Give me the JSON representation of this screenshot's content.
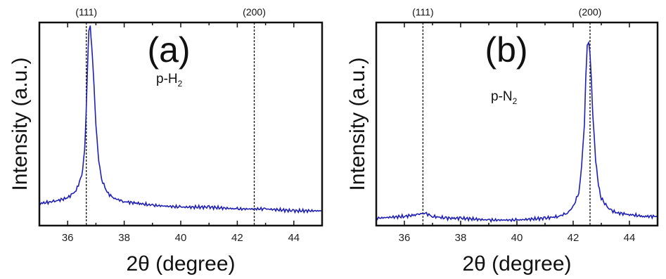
{
  "chart_data": [
    {
      "type": "line",
      "panel_label": "(a)",
      "sample": {
        "base": "p-H",
        "subscript": "2"
      },
      "xlabel": "2θ (degree)",
      "ylabel": "Intensity (a.u.)",
      "xlim": [
        35,
        45
      ],
      "ylim": [
        0,
        1.1
      ],
      "xticks": [
        36,
        38,
        40,
        42,
        44
      ],
      "y_ticks_labeled": false,
      "grid": false,
      "reference_lines": [
        {
          "label": "(111)",
          "x": 36.66
        },
        {
          "label": "(200)",
          "x": 42.6
        }
      ],
      "series": [
        {
          "color": "#1f1fb4",
          "x": [
            35.0,
            35.5,
            36.0,
            36.3,
            36.5,
            36.6,
            36.65,
            36.7,
            36.75,
            36.8,
            36.85,
            36.9,
            37.0,
            37.1,
            37.2,
            37.4,
            37.6,
            38.0,
            38.5,
            39.0,
            40.0,
            41.0,
            42.0,
            43.0,
            44.0,
            45.0
          ],
          "y": [
            0.12,
            0.13,
            0.15,
            0.19,
            0.27,
            0.4,
            0.6,
            0.85,
            1.05,
            1.08,
            0.98,
            0.85,
            0.55,
            0.35,
            0.25,
            0.18,
            0.15,
            0.13,
            0.12,
            0.11,
            0.1,
            0.1,
            0.09,
            0.09,
            0.08,
            0.08
          ]
        }
      ]
    },
    {
      "type": "line",
      "panel_label": "(b)",
      "sample": {
        "base": "p-N",
        "subscript": "2"
      },
      "xlabel": "2θ (degree)",
      "ylabel": "Intensity (a.u.)",
      "xlim": [
        35,
        45
      ],
      "ylim": [
        0,
        1.1
      ],
      "xticks": [
        36,
        38,
        40,
        42,
        44
      ],
      "y_ticks_labeled": false,
      "grid": false,
      "reference_lines": [
        {
          "label": "(111)",
          "x": 36.66
        },
        {
          "label": "(200)",
          "x": 42.6
        }
      ],
      "series": [
        {
          "color": "#1f1fb4",
          "x": [
            35.0,
            36.0,
            36.5,
            36.7,
            37.0,
            37.5,
            38.0,
            39.0,
            40.0,
            41.0,
            41.5,
            41.8,
            42.0,
            42.2,
            42.3,
            42.4,
            42.45,
            42.5,
            42.55,
            42.6,
            42.65,
            42.7,
            42.8,
            42.9,
            43.0,
            43.2,
            43.5,
            44.0,
            44.5,
            45.0
          ],
          "y": [
            0.04,
            0.05,
            0.06,
            0.07,
            0.05,
            0.04,
            0.04,
            0.03,
            0.03,
            0.04,
            0.05,
            0.07,
            0.1,
            0.18,
            0.32,
            0.55,
            0.8,
            0.98,
            1.0,
            0.92,
            0.78,
            0.6,
            0.35,
            0.22,
            0.15,
            0.1,
            0.07,
            0.06,
            0.05,
            0.05
          ]
        }
      ]
    }
  ]
}
